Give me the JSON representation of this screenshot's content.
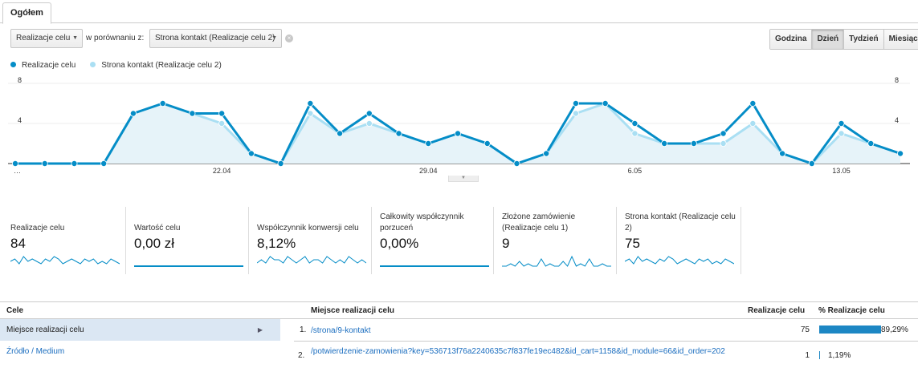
{
  "tabs": [
    {
      "label": "Ogółem"
    }
  ],
  "controls": {
    "metric_select": "Realizacje celu",
    "compare_label": "w porównaniu z:",
    "compare_select": "Strona kontakt (Realizacje celu 2)"
  },
  "granularity": {
    "options": [
      "Godzina",
      "Dzień",
      "Tydzień",
      "Miesiąc"
    ],
    "active": "Dzień"
  },
  "colors": {
    "series1": "#058dc7",
    "series2": "#aadff3"
  },
  "chart_data": {
    "type": "line",
    "x_ticks": [
      "…",
      "22.04",
      "29.04",
      "6.05",
      "13.05"
    ],
    "y_ticks": [
      "4",
      "8"
    ],
    "ylim": [
      0,
      8
    ],
    "series": [
      {
        "name": "Realizacje celu",
        "values": [
          0,
          0,
          0,
          0,
          5,
          6,
          5,
          5,
          1,
          0,
          6,
          3,
          5,
          3,
          2,
          3,
          2,
          0,
          1,
          6,
          6,
          4,
          2,
          2,
          3,
          6,
          1,
          0,
          4,
          2,
          1
        ]
      },
      {
        "name": "Strona kontakt (Realizacje celu 2)",
        "values": [
          0,
          0,
          0,
          0,
          5,
          6,
          5,
          4,
          1,
          0,
          5,
          3,
          4,
          3,
          2,
          3,
          2,
          0,
          1,
          5,
          6,
          3,
          2,
          2,
          2,
          4,
          1,
          0,
          3,
          2,
          1
        ]
      }
    ]
  },
  "metrics": [
    {
      "title": "Realizacje celu",
      "value": "84",
      "spark": [
        2,
        3,
        1,
        4,
        2,
        3,
        2,
        1,
        3,
        2,
        4,
        3,
        1,
        2,
        3,
        2,
        1,
        3,
        2,
        3,
        1,
        2,
        1,
        3,
        2,
        1
      ]
    },
    {
      "title": "Wartość celu",
      "value": "0,00 zł",
      "spark": [
        0,
        0,
        0,
        0,
        0,
        0,
        0,
        0,
        0,
        0,
        0,
        0,
        0,
        0,
        0,
        0,
        0,
        0,
        0,
        0,
        0,
        0,
        0,
        0,
        0,
        0
      ]
    },
    {
      "title": "Współczynnik konwersji celu",
      "value": "8,12%",
      "spark": [
        1,
        2,
        1,
        3,
        2,
        2,
        1,
        3,
        2,
        1,
        2,
        3,
        1,
        2,
        2,
        1,
        3,
        2,
        1,
        2,
        1,
        3,
        2,
        1,
        2,
        1
      ]
    },
    {
      "title": "Całkowity współczynnik porzuceń",
      "value": "0,00%",
      "spark": [
        0,
        0,
        0,
        0,
        0,
        0,
        0,
        0,
        0,
        0,
        0,
        0,
        0,
        0,
        0,
        0,
        0,
        0,
        0,
        0,
        0,
        0,
        0,
        0,
        0,
        0
      ]
    },
    {
      "title": "Złożone zamówienie (Realizacje celu 1)",
      "value": "9",
      "spark": [
        0,
        0,
        1,
        0,
        2,
        0,
        1,
        0,
        0,
        3,
        0,
        1,
        0,
        0,
        2,
        0,
        4,
        0,
        1,
        0,
        3,
        0,
        0,
        1,
        0,
        0
      ]
    },
    {
      "title": "Strona kontakt (Realizacje celu 2)",
      "value": "75",
      "spark": [
        2,
        3,
        1,
        4,
        2,
        3,
        2,
        1,
        3,
        2,
        4,
        3,
        1,
        2,
        3,
        2,
        1,
        3,
        2,
        3,
        1,
        2,
        1,
        3,
        2,
        1
      ]
    }
  ],
  "table": {
    "left_header": "Cele",
    "left_items": [
      "Miejsce realizacji celu",
      "Źródło / Medium"
    ],
    "col_place": "Miejsce realizacji celu",
    "col_count": "Realizacje celu",
    "col_pct": "% Realizacje celu",
    "rows": [
      {
        "num": "1.",
        "path": "/strona/9-kontakt",
        "count": "75",
        "pct": "89,29%",
        "share": 0.8929
      },
      {
        "num": "2.",
        "path": "/potwierdzenie-zamowienia?key=536713f76a2240635c7f837fe19ec482&id_cart=1158&id_module=66&id_order=202",
        "count": "1",
        "pct": "1,19%",
        "share": 0.0119
      }
    ]
  }
}
